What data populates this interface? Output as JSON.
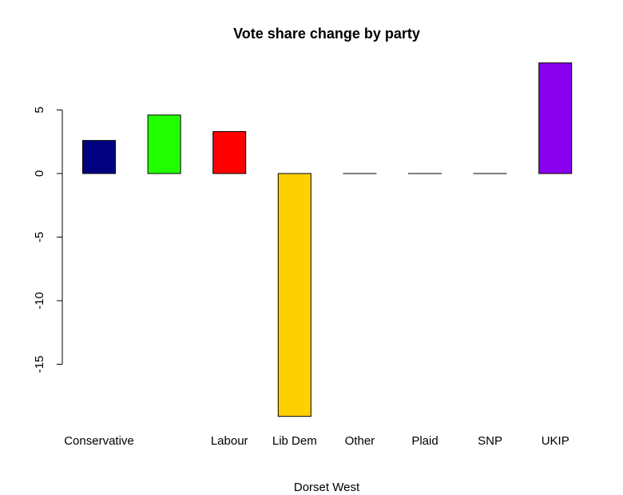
{
  "chart_data": {
    "type": "bar",
    "title": "Vote share change by party",
    "xlabel": "Dorset West",
    "ylabel": "",
    "categories": [
      "Conservative",
      "",
      "Labour",
      "Lib Dem",
      "Other",
      "Plaid",
      "SNP",
      "UKIP"
    ],
    "values": [
      2.6,
      4.6,
      3.3,
      -19.1,
      0,
      0,
      0,
      8.7
    ],
    "colors": [
      "#000080",
      "#22ff00",
      "#ff0000",
      "#ffd000",
      "#888888",
      "#888888",
      "#888888",
      "#8800ee"
    ],
    "y_ticks": [
      5,
      0,
      -5,
      -10,
      -15
    ],
    "ylim": [
      -19.1,
      8.7
    ],
    "grid": false,
    "legend": false
  }
}
